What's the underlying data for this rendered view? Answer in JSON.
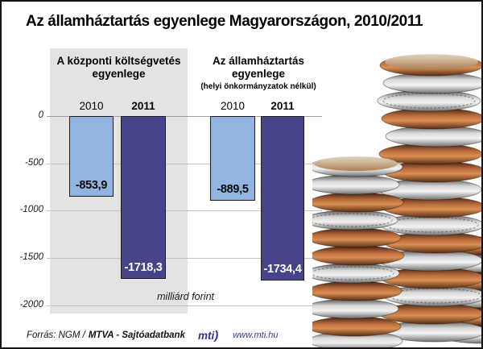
{
  "title": "Az államháztartás egyenlege Magyarországon, 2010/2011",
  "chart_data": {
    "type": "bar",
    "title": "Az államháztartás egyenlege Magyarországon, 2010/2011",
    "unit_label": "milliárd forint",
    "ylim": [
      0,
      -2000
    ],
    "y_ticks": [
      "0",
      "-500",
      "-1000",
      "-1500",
      "-2000"
    ],
    "grid": true,
    "groups": [
      {
        "title": "A központi költségvetés egyenlege",
        "subtitle": "",
        "categories": [
          "2010",
          "2011"
        ],
        "values": [
          -853.9,
          -1718.3
        ],
        "value_labels": [
          "-853,9",
          "-1718,3"
        ]
      },
      {
        "title": "Az államháztartás egyenlege",
        "subtitle": "(helyi önkormányzatok nélkül)",
        "categories": [
          "2010",
          "2011"
        ],
        "values": [
          -889.5,
          -1734.4
        ],
        "value_labels": [
          "-889,5",
          "-1734,4"
        ]
      }
    ],
    "colors": {
      "bar_2010": "#92b4e0",
      "bar_2011": "#454389"
    }
  },
  "footer": {
    "source_prefix": "Forrás: NGM /",
    "source_bold": "MTVA - Sajtóadatbank",
    "logo_text": "mti",
    "url": "www.mti.hu"
  }
}
